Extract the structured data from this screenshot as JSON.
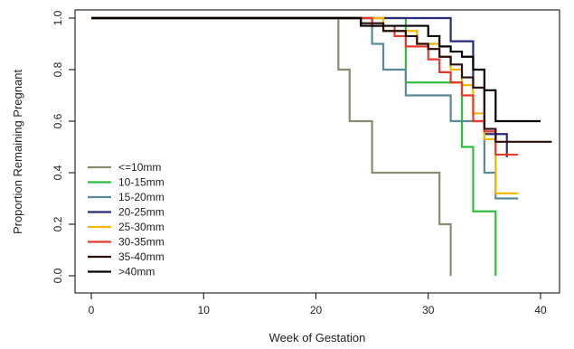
{
  "chart_data": {
    "type": "line",
    "step": true,
    "xlabel": "Week of Gestation",
    "ylabel": "Proportion Remaining Pregnant",
    "xlim": [
      0,
      41
    ],
    "ylim": [
      0,
      1
    ],
    "x_ticks": [
      "0",
      "10",
      "20",
      "30",
      "40"
    ],
    "x_tick_values": [
      0,
      10,
      20,
      30,
      40
    ],
    "y_ticks": [
      "0.0",
      "0.2",
      "0.4",
      "0.6",
      "0.8",
      "1.0"
    ],
    "y_tick_values": [
      0,
      0.2,
      0.4,
      0.6,
      0.8,
      1.0
    ],
    "grid": false,
    "legend_position": "bottom-left",
    "series": [
      {
        "name": "<=10mm",
        "color": "#8b8b6e",
        "x": [
          0,
          22,
          23,
          25,
          31,
          32
        ],
        "y": [
          1.0,
          0.8,
          0.6,
          0.4,
          0.2,
          0.0
        ]
      },
      {
        "name": "10-15mm",
        "color": "#2fbf3c",
        "x": [
          0,
          28,
          33,
          34,
          36,
          36
        ],
        "y": [
          1.0,
          0.75,
          0.5,
          0.25,
          0.0,
          0.0
        ]
      },
      {
        "name": "15-20mm",
        "color": "#5a8a98",
        "x": [
          0,
          25,
          26,
          28,
          32,
          35,
          36,
          38
        ],
        "y": [
          1.0,
          0.9,
          0.8,
          0.7,
          0.6,
          0.4,
          0.3,
          0.3
        ]
      },
      {
        "name": "20-25mm",
        "color": "#2a2a7a",
        "x": [
          0,
          32,
          34,
          35,
          37
        ],
        "y": [
          1.0,
          0.91,
          0.73,
          0.55,
          0.46
        ]
      },
      {
        "name": "25-30mm",
        "color": "#f0b800",
        "x": [
          0,
          26,
          29,
          31,
          32,
          33,
          34,
          35,
          36,
          38
        ],
        "y": [
          1.0,
          0.95,
          0.9,
          0.85,
          0.8,
          0.74,
          0.63,
          0.53,
          0.32,
          0.32
        ]
      },
      {
        "name": "30-35mm",
        "color": "#e33b2e",
        "x": [
          0,
          25,
          27,
          28,
          30,
          31,
          32,
          33,
          34,
          35,
          36,
          38
        ],
        "y": [
          1.0,
          0.97,
          0.93,
          0.89,
          0.84,
          0.79,
          0.75,
          0.7,
          0.6,
          0.56,
          0.47,
          0.47
        ]
      },
      {
        "name": "35-40mm",
        "color": "#2b0d0d",
        "x": [
          0,
          24,
          26,
          28,
          29,
          30,
          31,
          32,
          33,
          34,
          35,
          36,
          41
        ],
        "y": [
          1.0,
          0.98,
          0.95,
          0.93,
          0.9,
          0.88,
          0.85,
          0.82,
          0.77,
          0.73,
          0.57,
          0.52,
          0.52
        ]
      },
      {
        "name": ">40mm",
        "color": "#000000",
        "x": [
          0,
          24,
          28,
          30,
          31,
          32,
          33,
          34,
          35,
          36,
          40
        ],
        "y": [
          1.0,
          0.97,
          0.97,
          0.93,
          0.89,
          0.87,
          0.85,
          0.8,
          0.72,
          0.6,
          0.6
        ]
      }
    ]
  }
}
